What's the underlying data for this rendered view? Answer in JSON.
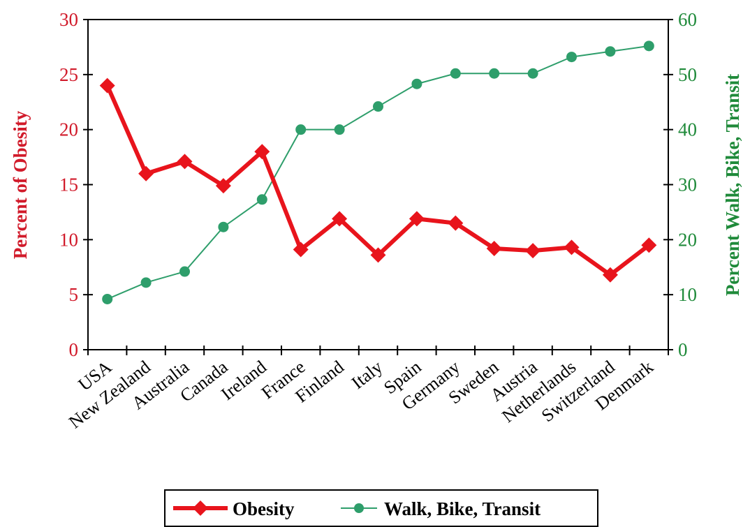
{
  "chart_data": {
    "type": "line",
    "categories": [
      "USA",
      "New Zealand",
      "Australia",
      "Canada",
      "Ireland",
      "France",
      "Finland",
      "Italy",
      "Spain",
      "Germany",
      "Sweden",
      "Austria",
      "Netherlands",
      "Switzerland",
      "Denmark"
    ],
    "series": [
      {
        "name": "Obesity",
        "axis": "left",
        "color": "#e8141c",
        "marker": "diamond",
        "values": [
          24.0,
          16.0,
          17.1,
          14.9,
          18.0,
          9.1,
          11.9,
          8.6,
          11.9,
          11.5,
          9.2,
          9.0,
          9.3,
          6.8,
          9.5
        ]
      },
      {
        "name": "Walk, Bike, Transit",
        "axis": "right",
        "color": "#2e9e6b",
        "marker": "circle",
        "values": [
          9.2,
          12.2,
          14.2,
          22.3,
          27.3,
          40.0,
          40.0,
          44.2,
          48.3,
          50.2,
          50.2,
          50.2,
          53.2,
          54.2,
          55.2
        ]
      }
    ],
    "ylabel": "Percent of Obesity",
    "ylabel_right": "Percent Walk, Bike, Transit",
    "xlabel": "",
    "ylim": [
      0,
      30
    ],
    "ylim_right": [
      0,
      60
    ],
    "yticks": [
      "0",
      "5",
      "10",
      "15",
      "20",
      "25",
      "30"
    ],
    "yticks_right": [
      "0",
      "10",
      "20",
      "30",
      "40",
      "50",
      "60"
    ],
    "left_axis_color": "#d11a2a",
    "right_axis_color": "#1f8a3a",
    "legend_position": "bottom",
    "grid": false
  }
}
